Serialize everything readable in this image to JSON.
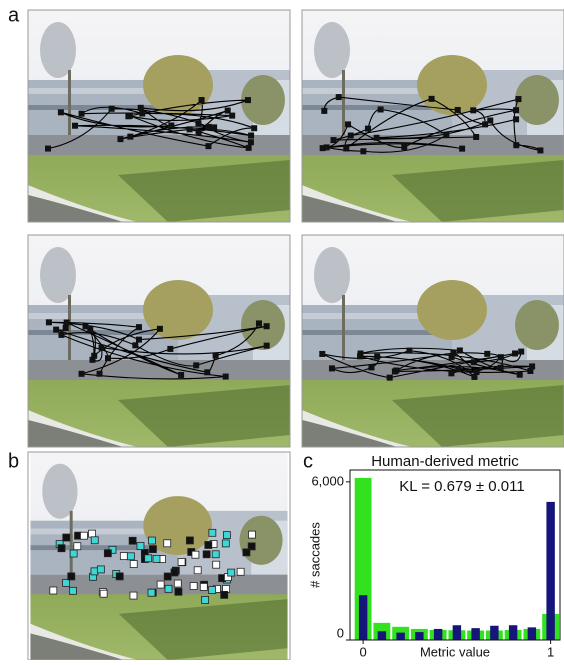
{
  "panels": {
    "a": "a",
    "b": "b",
    "c": "c"
  },
  "chart_data": {
    "type": "bar",
    "title": "Human-derived metric",
    "annotation": "KL = 0.679 ± 0.011",
    "xlabel": "Metric value",
    "ylabel": "# saccades",
    "x": [
      0,
      0.1,
      0.2,
      0.3,
      0.4,
      0.5,
      0.6,
      0.7,
      0.8,
      0.9,
      1
    ],
    "series": [
      {
        "color": "#33e21f",
        "values": [
          6150,
          650,
          500,
          420,
          380,
          370,
          360,
          360,
          380,
          420,
          990
        ]
      },
      {
        "color": "#15157a",
        "values": [
          1700,
          330,
          280,
          300,
          420,
          560,
          450,
          540,
          560,
          480,
          5240
        ]
      }
    ],
    "xlim": [
      -0.07,
      1.05
    ],
    "xticks": [
      0,
      1
    ],
    "ylim": [
      0,
      6450
    ],
    "yticks": [
      0,
      {
        "value": 6000,
        "label": "6,000"
      }
    ]
  }
}
